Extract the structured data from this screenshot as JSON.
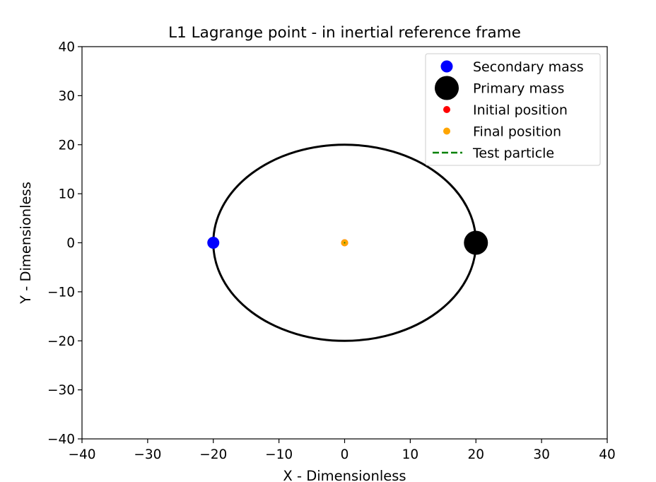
{
  "chart_data": {
    "type": "scatter",
    "title": "L1 Lagrange point - in inertial reference frame",
    "xlabel": "X - Dimensionless",
    "ylabel": "Y - Dimensionless",
    "xlim": [
      -40,
      40
    ],
    "ylim": [
      -40,
      40
    ],
    "xticks": [
      -40,
      -30,
      -20,
      -10,
      0,
      10,
      20,
      30,
      40
    ],
    "yticks": [
      -40,
      -30,
      -20,
      -10,
      0,
      10,
      20,
      30,
      40
    ],
    "xtick_labels": [
      "−40",
      "−30",
      "−20",
      "−10",
      "0",
      "10",
      "20",
      "30",
      "40"
    ],
    "ytick_labels": [
      "−40",
      "−30",
      "−20",
      "−10",
      "0",
      "10",
      "20",
      "30",
      "40"
    ],
    "grid": false,
    "legend_position": "top-right",
    "series": [
      {
        "name": "Secondary mass",
        "kind": "marker",
        "color": "#0000ff",
        "size": "medium",
        "points": [
          [
            -20,
            0
          ]
        ]
      },
      {
        "name": "Primary mass",
        "kind": "marker",
        "color": "#000000",
        "size": "large",
        "points": [
          [
            20,
            0
          ]
        ]
      },
      {
        "name": "Initial position",
        "kind": "marker",
        "color": "#ff0000",
        "size": "small",
        "points": [
          [
            0,
            0
          ]
        ]
      },
      {
        "name": "Final position",
        "kind": "marker",
        "color": "#ffa500",
        "size": "small",
        "points": [
          [
            0,
            0
          ]
        ]
      },
      {
        "name": "Test particle",
        "kind": "line",
        "color": "#008000",
        "dash": "dashed",
        "points": [
          [
            0,
            0
          ]
        ]
      }
    ],
    "orbit": {
      "color": "#000000",
      "radius": 20,
      "center": [
        0,
        0
      ]
    }
  }
}
